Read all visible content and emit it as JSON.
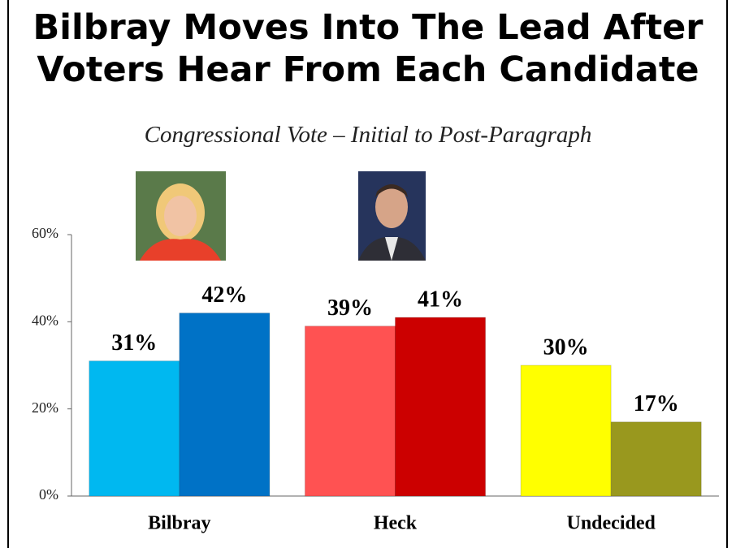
{
  "chart_data": {
    "type": "bar",
    "title": "Bilbray Moves Into The Lead After Voters Hear From Each Candidate",
    "subtitle": "Congressional Vote – Initial to Post-Paragraph",
    "categories": [
      "Bilbray",
      "Heck",
      "Undecided"
    ],
    "series": [
      {
        "colors": [
          "#00b8f0",
          "#ff5252",
          "#ffff00"
        ],
        "values": [
          31,
          39,
          30
        ],
        "value_labels": [
          "31%",
          "39%",
          "30%"
        ]
      },
      {
        "colors": [
          "#0072c6",
          "#cc0000",
          "#99981e"
        ],
        "values": [
          42,
          41,
          17
        ],
        "value_labels": [
          "42%",
          "41%",
          "17%"
        ]
      }
    ],
    "ylim": [
      0,
      60
    ],
    "yticks": [
      {
        "value": 0,
        "label": "0%"
      },
      {
        "value": 20,
        "label": "20%"
      },
      {
        "value": 40,
        "label": "40%"
      },
      {
        "value": 60,
        "label": "60%"
      }
    ],
    "grid": false
  }
}
